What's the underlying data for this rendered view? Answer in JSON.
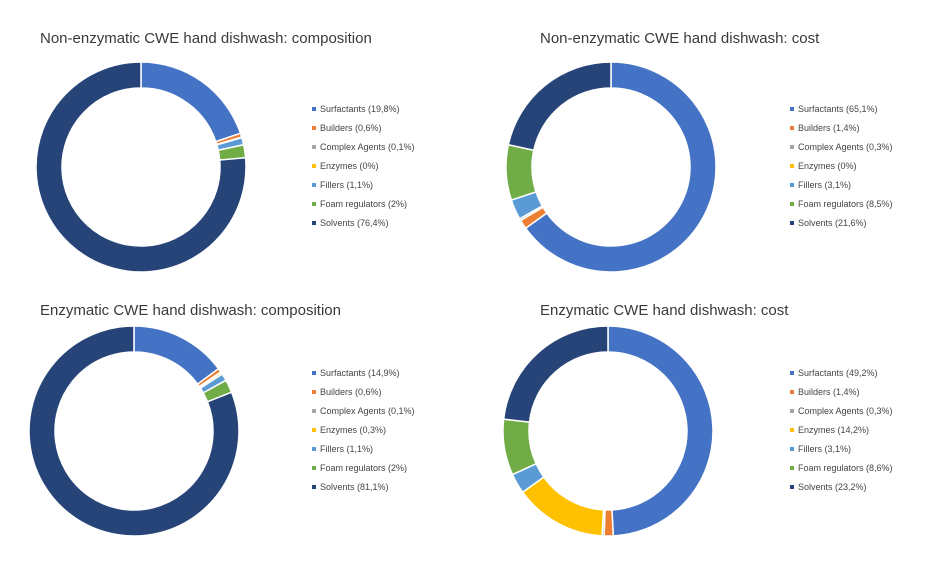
{
  "chart_data": [
    {
      "type": "pie",
      "title": "Non-enzymatic CWE hand dishwash: composition",
      "categories": [
        "Surfactants (19,8%)",
        "Builders (0,6%)",
        "Complex Agents (0,1%)",
        "Enzymes (0%)",
        "Fillers (1,1%)",
        "Foam regulators (2%)",
        "Solvents (76,4%)"
      ],
      "values": [
        19.8,
        0.6,
        0.1,
        0,
        1.1,
        2,
        76.4
      ]
    },
    {
      "type": "pie",
      "title": "Non-enzymatic CWE hand dishwash: cost",
      "categories": [
        "Surfactants (65,1%)",
        "Builders (1,4%)",
        "Complex Agents (0,3%)",
        "Enzymes (0%)",
        "Fillers (3,1%)",
        "Foam regulators (8,5%)",
        "Solvents (21,6%)"
      ],
      "values": [
        65.1,
        1.4,
        0.3,
        0,
        3.1,
        8.5,
        21.6
      ]
    },
    {
      "type": "pie",
      "title": "Enzymatic CWE hand dishwash: composition",
      "categories": [
        "Surfactants (14,9%)",
        "Builders (0,6%)",
        "Complex Agents (0,1%)",
        "Enzymes (0,3%)",
        "Fillers (1,1%)",
        "Foam regulators (2%)",
        "Solvents (81,1%)"
      ],
      "values": [
        14.9,
        0.6,
        0.1,
        0.3,
        1.1,
        2,
        81.1
      ]
    },
    {
      "type": "pie",
      "title": "Enzymatic CWE hand dishwash: cost",
      "categories": [
        "Surfactants (49,2%)",
        "Builders (1,4%)",
        "Complex Agents (0,3%)",
        "Enzymes (14,2%)",
        "Fillers (3,1%)",
        "Foam regulators (8,6%)",
        "Solvents (23,2%)"
      ],
      "values": [
        49.2,
        1.4,
        0.3,
        14.2,
        3.1,
        8.6,
        23.2
      ]
    }
  ],
  "colors": [
    "#4472c4",
    "#ed7d31",
    "#a5a5a5",
    "#ffc000",
    "#5b9bd5",
    "#70ad47",
    "#264478"
  ]
}
